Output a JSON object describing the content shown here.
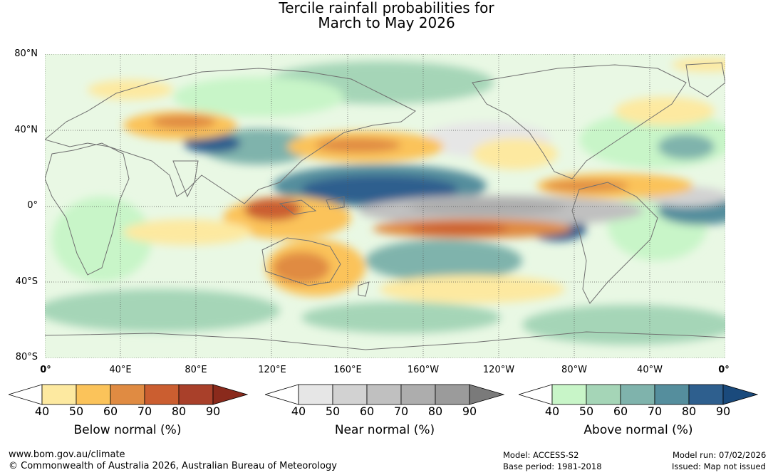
{
  "title": {
    "line1": "Tercile rainfall probabilities for",
    "line2": "March to May 2026"
  },
  "lat_labels": [
    "80°N",
    "40°N",
    "0°",
    "40°S",
    "80°S"
  ],
  "lon_labels": [
    "0°",
    "40°E",
    "80°E",
    "120°E",
    "160°E",
    "160°W",
    "120°W",
    "80°W",
    "40°W",
    "0°"
  ],
  "colorbars": [
    {
      "label": "Below normal (%)",
      "ticks": [
        "40",
        "50",
        "60",
        "70",
        "80",
        "90"
      ],
      "colors": [
        "#ffffff",
        "#fde9a0",
        "#fbc35a",
        "#e08b42",
        "#cb5e30",
        "#a9402a",
        "#8a2a1c"
      ]
    },
    {
      "label": "Near normal (%)",
      "ticks": [
        "40",
        "50",
        "60",
        "70",
        "80",
        "90"
      ],
      "colors": [
        "#ffffff",
        "#e6e6e6",
        "#d2d2d2",
        "#c0c0c0",
        "#adadad",
        "#9b9b9b",
        "#7a7a7a"
      ]
    },
    {
      "label": "Above normal (%)",
      "ticks": [
        "40",
        "50",
        "60",
        "70",
        "80",
        "90"
      ],
      "colors": [
        "#ffffff",
        "#c8f5c8",
        "#a5d5b7",
        "#7fb3ac",
        "#558e9d",
        "#2e5f8e",
        "#1a4a7c"
      ]
    }
  ],
  "footer": {
    "website": "www.bom.gov.au/climate",
    "copyright": "© Commonwealth of Australia 2026, Australian Bureau of Meteorology",
    "model": "Model: ACCESS-S2",
    "base_period": "Base period: 1981-2018",
    "model_run": "Model run: 07/02/2026",
    "issued": "Issued: Map not issued"
  },
  "map": {
    "title": "Tercile rainfall probabilities for March to May 2026",
    "lat_range": [
      -80,
      80
    ],
    "lon_range": [
      0,
      360
    ]
  }
}
